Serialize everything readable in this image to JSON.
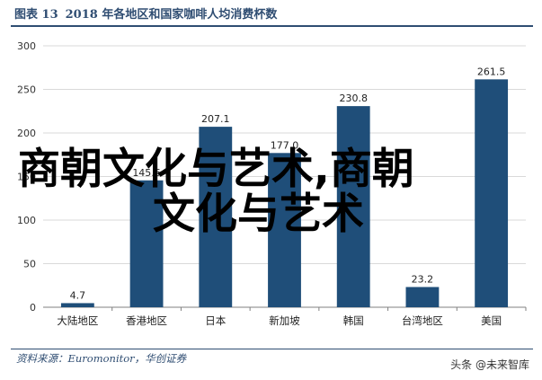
{
  "header": {
    "figure_label": "图表 13",
    "figure_title": "2018 年各地区和国家咖啡人均消费杯数"
  },
  "source_note": "资料来源：Euromonitor，华创证券",
  "watermark": {
    "badge": "头条 @未来智库",
    "overlay_line1": "商朝文化与艺术,商朝",
    "overlay_line2": "文化与艺术"
  },
  "colors": {
    "bar": "#1f4e79",
    "title": "#2f4d72",
    "grid": "#d9d9d9"
  },
  "chart_data": {
    "type": "bar",
    "categories": [
      "大陆地区",
      "香港地区",
      "日本",
      "新加坡",
      "韩国",
      "台湾地区",
      "美国"
    ],
    "values": [
      4.7,
      145.6,
      207.1,
      177.0,
      230.8,
      23.2,
      261.5
    ],
    "value_labels": [
      "4.7",
      "145.6",
      "207.1",
      "177.0",
      "230.8",
      "23.2",
      "261.5"
    ],
    "ylim": [
      0,
      300
    ],
    "yticks": [
      0,
      50,
      100,
      150,
      200,
      250,
      300
    ],
    "grid": true,
    "title": "",
    "xlabel": "",
    "ylabel": ""
  }
}
